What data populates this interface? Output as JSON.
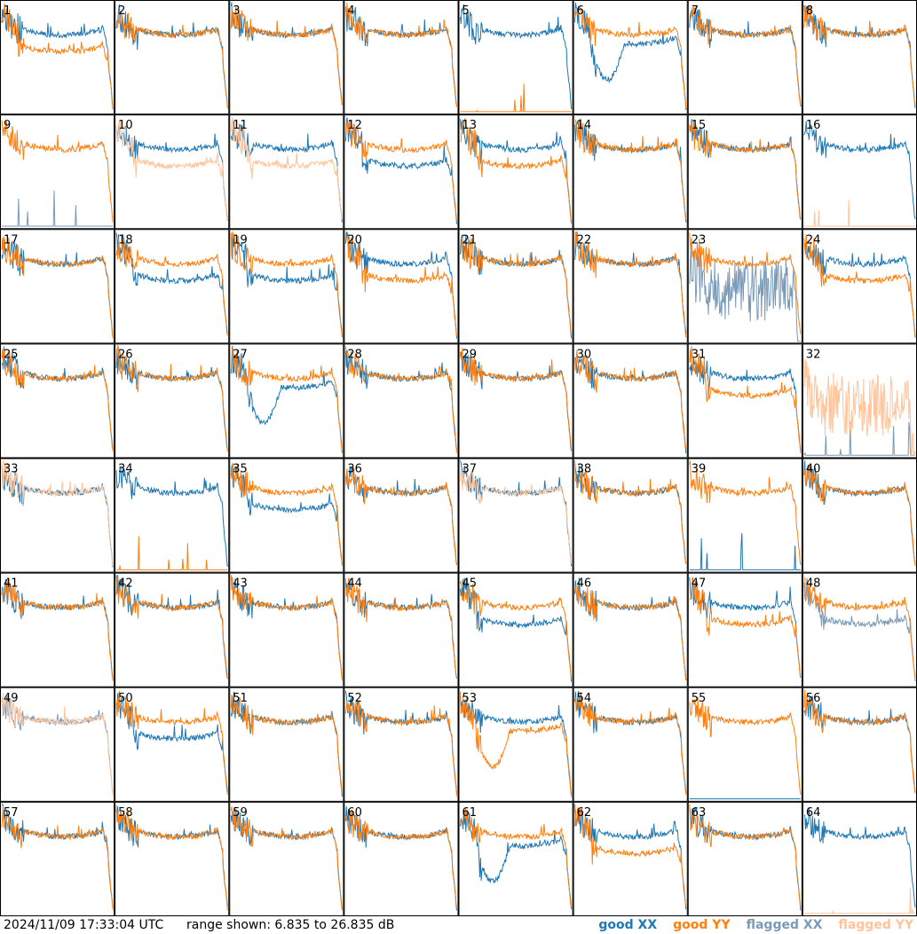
{
  "footer": {
    "timestamp": "2024/11/09 17:33:04 UTC",
    "range": "range shown: 6.835 to 26.835 dB"
  },
  "legend": [
    {
      "label": "good XX",
      "color": "#1f77b4"
    },
    {
      "label": "good YY",
      "color": "#ff7f0e"
    },
    {
      "label": "flagged XX",
      "color": "#7a9ab8"
    },
    {
      "label": "flagged YY",
      "color": "#ffc49a"
    }
  ],
  "chart_data": {
    "type": "line",
    "ylim": [
      6.835,
      26.835
    ],
    "grid_rows": 8,
    "grid_cols": 8,
    "panels": [
      {
        "id": "1",
        "xx": "good",
        "yy": "good",
        "xx_shape": "normal",
        "yy_shape": "low"
      },
      {
        "id": "2",
        "xx": "good",
        "yy": "good",
        "xx_shape": "normal",
        "yy_shape": "normal"
      },
      {
        "id": "3",
        "xx": "good",
        "yy": "good",
        "xx_shape": "normal",
        "yy_shape": "normal"
      },
      {
        "id": "4",
        "xx": "good",
        "yy": "good",
        "xx_shape": "normal",
        "yy_shape": "normal"
      },
      {
        "id": "5",
        "xx": "good",
        "yy": "good",
        "xx_shape": "normal",
        "yy_shape": "dead"
      },
      {
        "id": "6",
        "xx": "good",
        "yy": "good",
        "xx_shape": "dip",
        "yy_shape": "normal"
      },
      {
        "id": "7",
        "xx": "good",
        "yy": "good",
        "xx_shape": "normal",
        "yy_shape": "normal"
      },
      {
        "id": "8",
        "xx": "good",
        "yy": "good",
        "xx_shape": "normal",
        "yy_shape": "normal"
      },
      {
        "id": "9",
        "xx": "flagged",
        "yy": "good",
        "xx_shape": "dead",
        "yy_shape": "normal"
      },
      {
        "id": "10",
        "xx": "good",
        "yy": "flagged",
        "xx_shape": "normal",
        "yy_shape": "low"
      },
      {
        "id": "11",
        "xx": "good",
        "yy": "flagged",
        "xx_shape": "normal",
        "yy_shape": "low"
      },
      {
        "id": "12",
        "xx": "good",
        "yy": "good",
        "xx_shape": "low",
        "yy_shape": "normal"
      },
      {
        "id": "13",
        "xx": "good",
        "yy": "good",
        "xx_shape": "normal",
        "yy_shape": "low"
      },
      {
        "id": "14",
        "xx": "good",
        "yy": "good",
        "xx_shape": "normal",
        "yy_shape": "normal"
      },
      {
        "id": "15",
        "xx": "good",
        "yy": "good",
        "xx_shape": "normal",
        "yy_shape": "normal"
      },
      {
        "id": "16",
        "xx": "good",
        "yy": "flagged",
        "xx_shape": "normal",
        "yy_shape": "dead"
      },
      {
        "id": "17",
        "xx": "good",
        "yy": "good",
        "xx_shape": "normal",
        "yy_shape": "normal"
      },
      {
        "id": "18",
        "xx": "good",
        "yy": "good",
        "xx_shape": "low",
        "yy_shape": "normal"
      },
      {
        "id": "19",
        "xx": "good",
        "yy": "good",
        "xx_shape": "low",
        "yy_shape": "normal"
      },
      {
        "id": "20",
        "xx": "good",
        "yy": "good",
        "xx_shape": "normal",
        "yy_shape": "low"
      },
      {
        "id": "21",
        "xx": "good",
        "yy": "good",
        "xx_shape": "normal",
        "yy_shape": "normal"
      },
      {
        "id": "22",
        "xx": "good",
        "yy": "good",
        "xx_shape": "normal",
        "yy_shape": "normal"
      },
      {
        "id": "23",
        "xx": "flagged",
        "yy": "good",
        "xx_shape": "noisy",
        "yy_shape": "normal"
      },
      {
        "id": "24",
        "xx": "good",
        "yy": "good",
        "xx_shape": "normal",
        "yy_shape": "low"
      },
      {
        "id": "25",
        "xx": "good",
        "yy": "good",
        "xx_shape": "normal",
        "yy_shape": "normal"
      },
      {
        "id": "26",
        "xx": "good",
        "yy": "good",
        "xx_shape": "normal",
        "yy_shape": "normal"
      },
      {
        "id": "27",
        "xx": "good",
        "yy": "good",
        "xx_shape": "dip",
        "yy_shape": "normal"
      },
      {
        "id": "28",
        "xx": "good",
        "yy": "good",
        "xx_shape": "normal",
        "yy_shape": "normal"
      },
      {
        "id": "29",
        "xx": "good",
        "yy": "good",
        "xx_shape": "normal",
        "yy_shape": "normal"
      },
      {
        "id": "30",
        "xx": "good",
        "yy": "good",
        "xx_shape": "normal",
        "yy_shape": "normal"
      },
      {
        "id": "31",
        "xx": "good",
        "yy": "good",
        "xx_shape": "normal",
        "yy_shape": "low"
      },
      {
        "id": "32",
        "xx": "flagged",
        "yy": "flagged",
        "xx_shape": "dead",
        "yy_shape": "noisy"
      },
      {
        "id": "33",
        "xx": "good",
        "yy": "flagged",
        "xx_shape": "normal",
        "yy_shape": "normal"
      },
      {
        "id": "34",
        "xx": "good",
        "yy": "good",
        "xx_shape": "normal",
        "yy_shape": "dead"
      },
      {
        "id": "35",
        "xx": "good",
        "yy": "good",
        "xx_shape": "low",
        "yy_shape": "normal"
      },
      {
        "id": "36",
        "xx": "good",
        "yy": "good",
        "xx_shape": "normal",
        "yy_shape": "normal"
      },
      {
        "id": "37",
        "xx": "good",
        "yy": "flagged",
        "xx_shape": "normal",
        "yy_shape": "normal"
      },
      {
        "id": "38",
        "xx": "good",
        "yy": "good",
        "xx_shape": "normal",
        "yy_shape": "normal"
      },
      {
        "id": "39",
        "xx": "good",
        "yy": "good",
        "xx_shape": "dead",
        "yy_shape": "normal"
      },
      {
        "id": "40",
        "xx": "good",
        "yy": "good",
        "xx_shape": "normal",
        "yy_shape": "normal"
      },
      {
        "id": "41",
        "xx": "good",
        "yy": "good",
        "xx_shape": "normal",
        "yy_shape": "normal"
      },
      {
        "id": "42",
        "xx": "good",
        "yy": "good",
        "xx_shape": "normal",
        "yy_shape": "normal"
      },
      {
        "id": "43",
        "xx": "good",
        "yy": "good",
        "xx_shape": "normal",
        "yy_shape": "normal"
      },
      {
        "id": "44",
        "xx": "good",
        "yy": "good",
        "xx_shape": "normal",
        "yy_shape": "normal"
      },
      {
        "id": "45",
        "xx": "good",
        "yy": "good",
        "xx_shape": "low",
        "yy_shape": "normal"
      },
      {
        "id": "46",
        "xx": "good",
        "yy": "good",
        "xx_shape": "normal",
        "yy_shape": "normal"
      },
      {
        "id": "47",
        "xx": "good",
        "yy": "good",
        "xx_shape": "normal",
        "yy_shape": "low"
      },
      {
        "id": "48",
        "xx": "flagged",
        "yy": "good",
        "xx_shape": "low",
        "yy_shape": "normal"
      },
      {
        "id": "49",
        "xx": "flagged",
        "yy": "flagged",
        "xx_shape": "normal",
        "yy_shape": "normal"
      },
      {
        "id": "50",
        "xx": "good",
        "yy": "good",
        "xx_shape": "low",
        "yy_shape": "normal"
      },
      {
        "id": "51",
        "xx": "good",
        "yy": "good",
        "xx_shape": "normal",
        "yy_shape": "normal"
      },
      {
        "id": "52",
        "xx": "good",
        "yy": "good",
        "xx_shape": "normal",
        "yy_shape": "normal"
      },
      {
        "id": "53",
        "xx": "good",
        "yy": "good",
        "xx_shape": "normal",
        "yy_shape": "dip"
      },
      {
        "id": "54",
        "xx": "good",
        "yy": "good",
        "xx_shape": "normal",
        "yy_shape": "normal"
      },
      {
        "id": "55",
        "xx": "good",
        "yy": "good",
        "xx_shape": "dead",
        "yy_shape": "normal"
      },
      {
        "id": "56",
        "xx": "good",
        "yy": "good",
        "xx_shape": "normal",
        "yy_shape": "normal"
      },
      {
        "id": "57",
        "xx": "good",
        "yy": "good",
        "xx_shape": "normal",
        "yy_shape": "normal"
      },
      {
        "id": "58",
        "xx": "good",
        "yy": "good",
        "xx_shape": "normal",
        "yy_shape": "normal"
      },
      {
        "id": "59",
        "xx": "good",
        "yy": "good",
        "xx_shape": "normal",
        "yy_shape": "normal"
      },
      {
        "id": "60",
        "xx": "good",
        "yy": "good",
        "xx_shape": "normal",
        "yy_shape": "normal"
      },
      {
        "id": "61",
        "xx": "good",
        "yy": "good",
        "xx_shape": "dip",
        "yy_shape": "normal"
      },
      {
        "id": "62",
        "xx": "good",
        "yy": "good",
        "xx_shape": "normal",
        "yy_shape": "low"
      },
      {
        "id": "63",
        "xx": "good",
        "yy": "good",
        "xx_shape": "normal",
        "yy_shape": "normal"
      },
      {
        "id": "64",
        "xx": "good",
        "yy": "flagged",
        "xx_shape": "normal",
        "yy_shape": "dead"
      }
    ]
  }
}
